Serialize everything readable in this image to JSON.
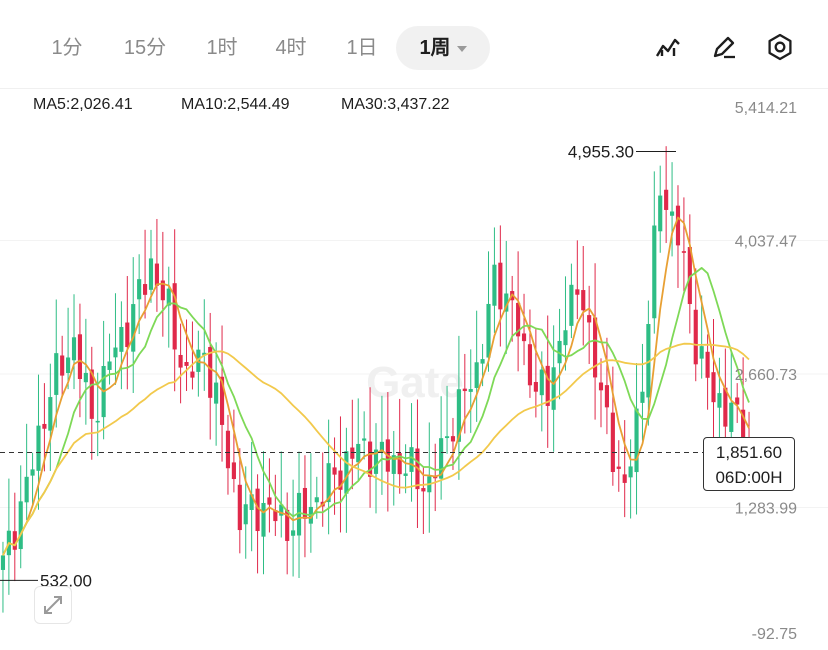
{
  "tabs": [
    {
      "label": "1分",
      "active": false
    },
    {
      "label": "15分",
      "active": false
    },
    {
      "label": "1时",
      "active": false
    },
    {
      "label": "4时",
      "active": false
    },
    {
      "label": "1日",
      "active": false
    },
    {
      "label": "1周",
      "active": true
    }
  ],
  "toolbar": {
    "icons": [
      "indicator-icon",
      "draw-icon",
      "settings-icon"
    ]
  },
  "indicators": {
    "ma5": "MA5:2,026.41",
    "ma10": "MA10:2,544.49",
    "ma30": "MA30:3,437.22"
  },
  "colors": {
    "up": "#2ebd85",
    "down": "#e0294a",
    "ma5": "#e8a034",
    "ma10": "#7ed957",
    "ma30": "#f2c94c",
    "text_muted": "#8a8a8a",
    "text_dark": "#1e1e1e"
  },
  "watermark": "Gate",
  "chart_data": {
    "type": "candlestick",
    "y_axis_labels": [
      "5,414.21",
      "4,037.47",
      "2,660.73",
      "1,283.99",
      "-92.75"
    ],
    "ylim": [
      -92.75,
      5414.21
    ],
    "grid": true,
    "annotations": {
      "high_label": "4,955.30",
      "low_label": "532.00"
    },
    "last_price": {
      "price": "1,851.60",
      "countdown": "06D:00H",
      "value": 1851.6
    },
    "ma_legend": [
      "MA5:2,026.41",
      "MA10:2,544.49",
      "MA30:3,437.22"
    ],
    "bars": 127,
    "close_anchors": [
      [
        0,
        700
      ],
      [
        4,
        1500
      ],
      [
        8,
        2500
      ],
      [
        12,
        3000
      ],
      [
        15,
        2200
      ],
      [
        18,
        2800
      ],
      [
        22,
        3300
      ],
      [
        25,
        3800
      ],
      [
        28,
        3300
      ],
      [
        31,
        2600
      ],
      [
        34,
        2900
      ],
      [
        37,
        2100
      ],
      [
        40,
        1200
      ],
      [
        44,
        1300
      ],
      [
        48,
        1100
      ],
      [
        52,
        1300
      ],
      [
        56,
        1600
      ],
      [
        60,
        1900
      ],
      [
        64,
        1800
      ],
      [
        68,
        1700
      ],
      [
        72,
        1500
      ],
      [
        76,
        2200
      ],
      [
        80,
        2700
      ],
      [
        83,
        3600
      ],
      [
        86,
        3400
      ],
      [
        88,
        2800
      ],
      [
        92,
        2400
      ],
      [
        95,
        3300
      ],
      [
        98,
        3500
      ],
      [
        100,
        2700
      ],
      [
        103,
        1900
      ],
      [
        105,
        1400
      ],
      [
        108,
        2600
      ],
      [
        111,
        4600
      ],
      [
        114,
        4100
      ],
      [
        117,
        3000
      ],
      [
        120,
        2400
      ],
      [
        123,
        2300
      ],
      [
        126,
        1851.6
      ]
    ]
  }
}
